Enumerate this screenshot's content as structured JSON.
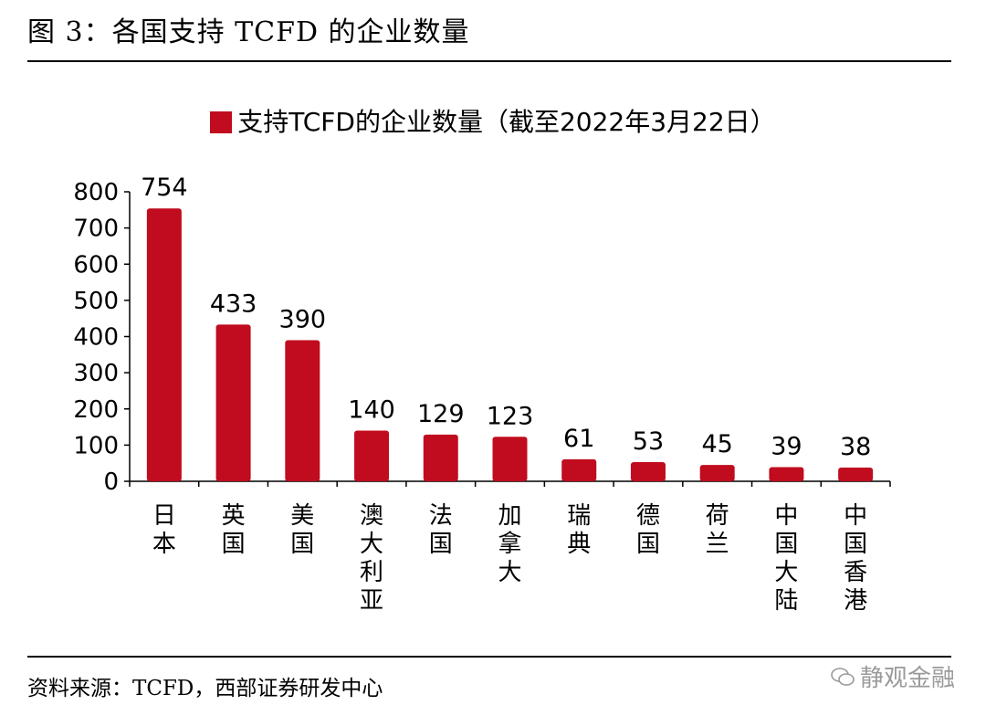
{
  "figure": {
    "title": "图 3：各国支持 TCFD 的企业数量",
    "source": "资料来源：TCFD，西部证券研发中心",
    "watermark": "静观金融"
  },
  "chart_data": {
    "type": "bar",
    "title": "",
    "legend": [
      "支持TCFD的企业数量（截至2022年3月22日）"
    ],
    "categories": [
      "日本",
      "英国",
      "美国",
      "澳大利亚",
      "法国",
      "加拿大",
      "瑞典",
      "德国",
      "荷兰",
      "中国大陆",
      "中国香港"
    ],
    "series": [
      {
        "name": "支持TCFD的企业数量（截至2022年3月22日）",
        "values": [
          754,
          433,
          390,
          140,
          129,
          123,
          61,
          53,
          45,
          39,
          38
        ],
        "color": "#C00C1E"
      }
    ],
    "data_labels": [
      "754",
      "433",
      "390",
      "140",
      "129",
      "123",
      "61",
      "53",
      "45",
      "39",
      "38"
    ],
    "yticks": [
      0,
      100,
      200,
      300,
      400,
      500,
      600,
      700,
      800
    ],
    "ylim": [
      0,
      800
    ],
    "xlabel": "",
    "ylabel": "",
    "grid": false,
    "legend_position": "top-center"
  }
}
